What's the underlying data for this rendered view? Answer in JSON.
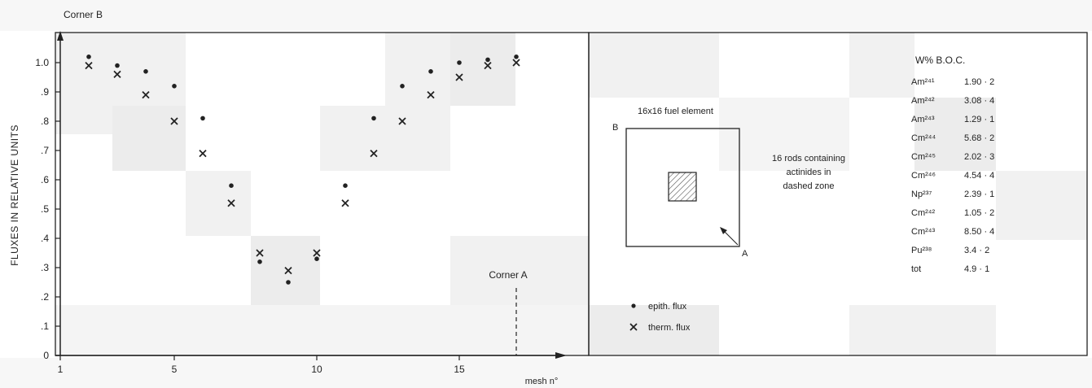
{
  "chart_data": {
    "type": "scatter",
    "title": "",
    "xlabel": "mesh n°",
    "ylabel": "FLUXES IN RELATIVE UNITS",
    "xlim": [
      1,
      18.5
    ],
    "ylim": [
      0,
      1.1
    ],
    "x_ticks": [
      {
        "value": 1,
        "label": "1"
      },
      {
        "value": 5,
        "label": "5"
      },
      {
        "value": 10,
        "label": "10"
      },
      {
        "value": 15,
        "label": "15"
      }
    ],
    "y_ticks": [
      {
        "value": 0,
        "label": "0"
      },
      {
        "value": 0.1,
        "label": ".1"
      },
      {
        "value": 0.2,
        "label": ".2"
      },
      {
        "value": 0.3,
        "label": ".3"
      },
      {
        "value": 0.4,
        "label": ".4"
      },
      {
        "value": 0.5,
        "label": ".5"
      },
      {
        "value": 0.6,
        "label": ".6"
      },
      {
        "value": 0.7,
        "label": ".7"
      },
      {
        "value": 0.8,
        "label": ".8"
      },
      {
        "value": 0.9,
        "label": ".9"
      },
      {
        "value": 1.0,
        "label": "1.0"
      }
    ],
    "grid": false,
    "legend_position": "bottom-right",
    "series": [
      {
        "name": "epith. flux",
        "marker": "dot",
        "x": [
          2,
          3,
          4,
          5,
          6,
          7,
          8,
          9,
          10,
          11,
          12,
          13,
          14,
          15,
          16,
          17
        ],
        "y": [
          1.02,
          0.99,
          0.97,
          0.92,
          0.81,
          0.58,
          0.32,
          0.25,
          0.33,
          0.58,
          0.81,
          0.92,
          0.97,
          1.0,
          1.01,
          1.02
        ]
      },
      {
        "name": "therm. flux",
        "marker": "cross",
        "x": [
          2,
          3,
          4,
          5,
          6,
          7,
          8,
          9,
          10,
          11,
          12,
          13,
          14,
          15,
          16,
          17
        ],
        "y": [
          0.99,
          0.96,
          0.89,
          0.8,
          0.69,
          0.52,
          0.35,
          0.29,
          0.35,
          0.52,
          0.69,
          0.8,
          0.89,
          0.95,
          0.99,
          1.0
        ]
      }
    ],
    "annotations": {
      "corner_b": "Corner B",
      "corner_a": "Corner A",
      "corner_a_x": 17
    }
  },
  "inset": {
    "title": "16x16 fuel element",
    "corner_b_label": "B",
    "corner_a_label": "A",
    "description_lines": [
      "16 rods containing",
      "actinides in",
      "dashed zone"
    ]
  },
  "composition_table": {
    "header": "W% B.O.C.",
    "rows": [
      {
        "nuclide": "Am²⁴¹",
        "value": "1.90 · 2"
      },
      {
        "nuclide": "Am²⁴²",
        "value": "3.08 · 4"
      },
      {
        "nuclide": "Am²⁴³",
        "value": "1.29 · 1"
      },
      {
        "nuclide": "Cm²⁴⁴",
        "value": "5.68 · 2"
      },
      {
        "nuclide": "Cm²⁴⁵",
        "value": "2.02 · 3"
      },
      {
        "nuclide": "Cm²⁴⁶",
        "value": "4.54 · 4"
      },
      {
        "nuclide": "Np²³⁷",
        "value": "2.39 · 1"
      },
      {
        "nuclide": "Cm²⁴²",
        "value": "1.05 · 2"
      },
      {
        "nuclide": "Cm²⁴³",
        "value": "8.50 · 4"
      },
      {
        "nuclide": "Pu²³⁸",
        "value": "3.4 · 2"
      },
      {
        "nuclide": "tot",
        "value": "4.9 · 1"
      }
    ]
  },
  "colors": {
    "ink": "#222222",
    "shade_light": "#f1f1f1",
    "shade_mid": "#e9e9e9",
    "hatch": "#555555"
  }
}
